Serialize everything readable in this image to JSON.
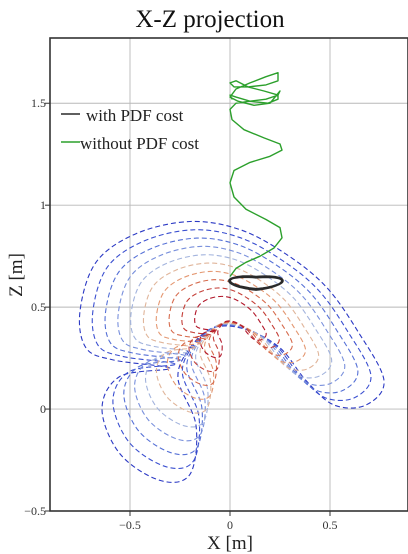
{
  "chart_data": {
    "type": "line",
    "title": "X-Z projection",
    "xlabel": "X [m]",
    "ylabel": "Z [m]",
    "xlim": [
      -0.9,
      0.89
    ],
    "ylim": [
      -0.5,
      1.82
    ],
    "xticks": [
      {
        "value": -0.5,
        "label": "−0.5"
      },
      {
        "value": 0,
        "label": "0"
      },
      {
        "value": 0.5,
        "label": "0.5"
      }
    ],
    "yticks": [
      {
        "value": -0.5,
        "label": "−0.5"
      },
      {
        "value": 0,
        "label": "0"
      },
      {
        "value": 0.5,
        "label": "0.5"
      },
      {
        "value": 1,
        "label": "1"
      },
      {
        "value": 1.5,
        "label": "1.5"
      }
    ],
    "grid": true,
    "legend_position": "top-left",
    "series": [
      {
        "name": "with PDF cost",
        "color": "#2a2a2a",
        "style": "loop",
        "center": [
          0.13,
          0.617
        ],
        "radii": [
          0.265,
          0.06
        ],
        "loops": 5
      },
      {
        "name": "without PDF cost",
        "color": "#2ca02c",
        "x": [
          0.0,
          0.03,
          0.08,
          0.15,
          0.22,
          0.26,
          0.25,
          0.18,
          0.08,
          0.02,
          0.0,
          0.02,
          0.1,
          0.2,
          0.26,
          0.25,
          0.17,
          0.07,
          0.01,
          0.0,
          0.03,
          0.1,
          0.18,
          0.24,
          0.25,
          0.2,
          0.12,
          0.04,
          0.0,
          0.03,
          0.1,
          0.18,
          0.24,
          0.24,
          0.18,
          0.09,
          0.02,
          0.0,
          0.03,
          0.09,
          0.17,
          0.24,
          0.24,
          0.19,
          0.1,
          0.03,
          0.0,
          0.01
        ],
        "y": [
          0.65,
          0.69,
          0.72,
          0.75,
          0.79,
          0.84,
          0.89,
          0.93,
          0.98,
          1.04,
          1.11,
          1.17,
          1.21,
          1.24,
          1.27,
          1.3,
          1.33,
          1.37,
          1.42,
          1.47,
          1.5,
          1.51,
          1.52,
          1.54,
          1.56,
          1.5,
          1.49,
          1.51,
          1.53,
          1.57,
          1.6,
          1.63,
          1.65,
          1.61,
          1.59,
          1.58,
          1.58,
          1.6,
          1.61,
          1.58,
          1.56,
          1.54,
          1.52,
          1.5,
          1.51,
          1.53,
          1.54,
          1.52
        ]
      }
    ],
    "contours": [
      {
        "level": 1,
        "color": "#2b39c4",
        "scale": 1.0
      },
      {
        "level": 2,
        "color": "#3a4fd0",
        "scale": 0.915
      },
      {
        "level": 3,
        "color": "#5570d6",
        "scale": 0.83
      },
      {
        "level": 4,
        "color": "#7990dc",
        "scale": 0.745
      },
      {
        "level": 5,
        "color": "#a2b3dd",
        "scale": 0.66
      },
      {
        "level": 6,
        "color": "#e0b59a",
        "scale": 0.575
      },
      {
        "level": 7,
        "color": "#e49872",
        "scale": 0.49
      },
      {
        "level": 8,
        "color": "#d66b4d",
        "scale": 0.405
      },
      {
        "level": 9,
        "color": "#c43f38",
        "scale": 0.32
      },
      {
        "level": 10,
        "color": "#b2182b",
        "scale": 0.235
      }
    ]
  }
}
